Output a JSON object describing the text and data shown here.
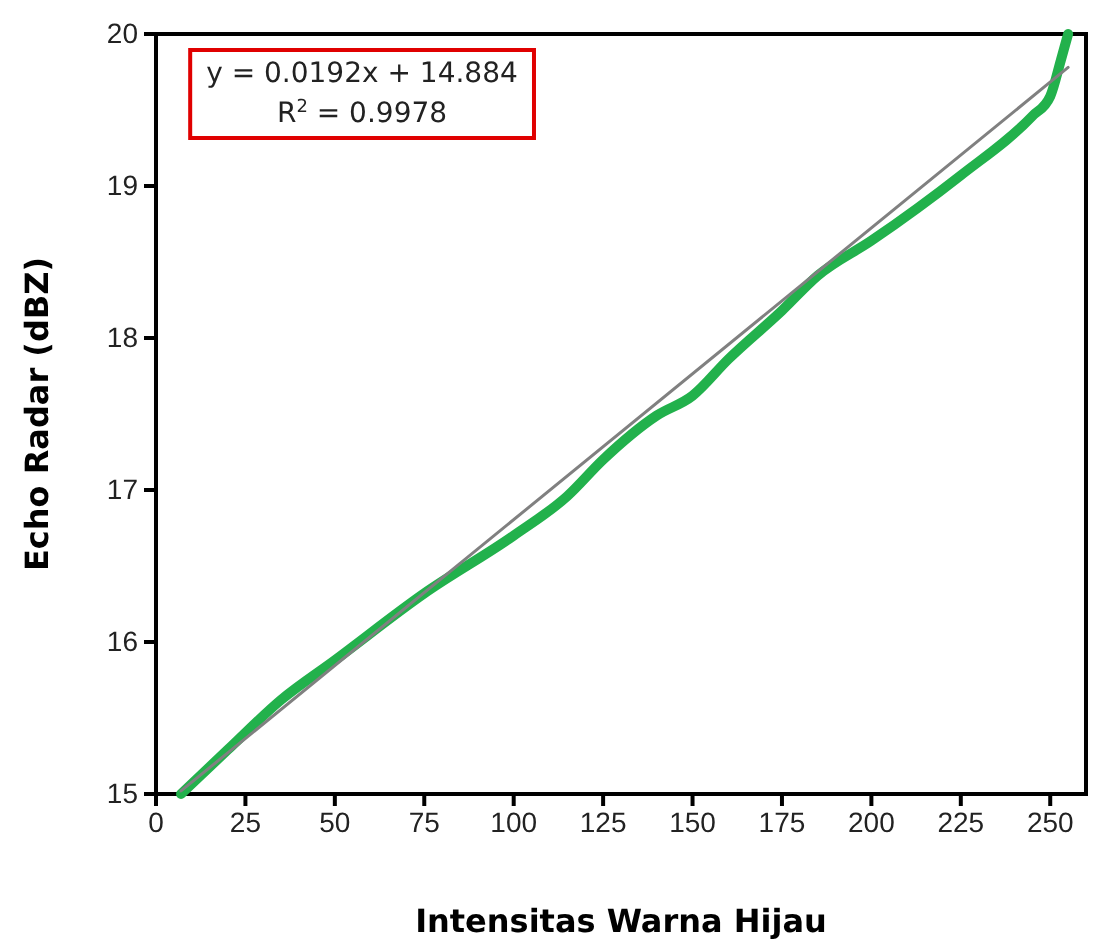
{
  "chart_data": {
    "type": "line",
    "xlabel": "Intensitas Warna Hijau",
    "ylabel": "Echo Radar (dBZ)",
    "xlim": [
      0,
      260
    ],
    "xticks": [
      0,
      25,
      50,
      75,
      100,
      125,
      150,
      175,
      200,
      225,
      250
    ],
    "ylim": [
      15,
      20
    ],
    "yticks": [
      15,
      16,
      17,
      18,
      19,
      20
    ],
    "grid": false,
    "marker": "none",
    "line_style": "solid",
    "annotations": [
      "y = 0.0192x + 14.884",
      "R$^{2}$ = 0.9978"
    ],
    "series": [
      {
        "color": "#22b14c",
        "x": [
          7,
          20,
          35,
          50,
          75,
          100,
          115,
          125,
          140,
          150,
          160,
          175,
          185,
          200,
          225,
          245,
          250,
          253,
          255
        ],
        "values": [
          15.0,
          15.29,
          15.62,
          15.88,
          16.32,
          16.7,
          16.96,
          17.2,
          17.49,
          17.62,
          17.86,
          18.18,
          18.41,
          18.64,
          19.07,
          19.46,
          19.59,
          19.83,
          20.0
        ]
      },
      {
        "color": "#808080",
        "x": [
          7,
          255
        ],
        "values": [
          15.02,
          19.78
        ]
      }
    ]
  }
}
